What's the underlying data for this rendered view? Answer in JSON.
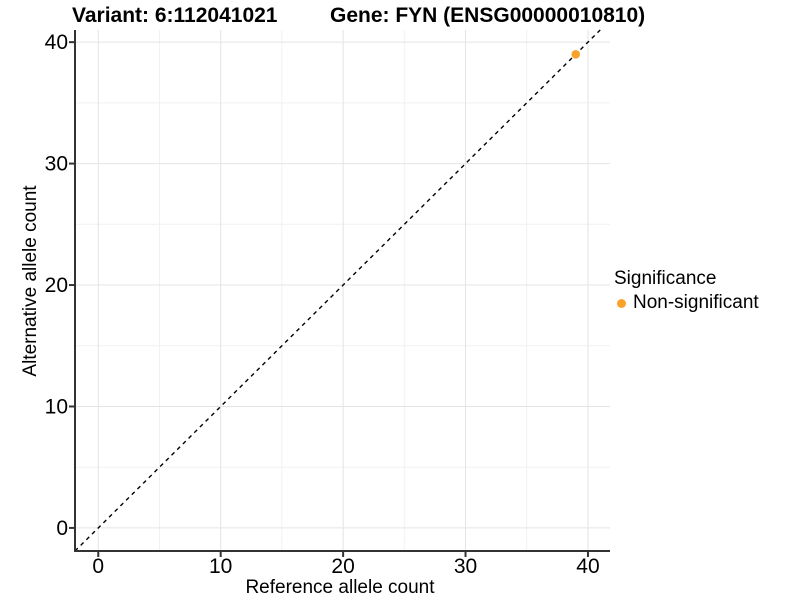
{
  "chart_data": {
    "type": "scatter",
    "titles": {
      "variant": "Variant: 6:112041021",
      "gene": "Gene: FYN (ENSG00000010810)"
    },
    "xlabel": "Reference allele count",
    "ylabel": "Alternative allele count",
    "xlim": [
      -1.9,
      41.8
    ],
    "ylim": [
      -1.9,
      41.0
    ],
    "x_ticks": [
      0,
      10,
      20,
      30,
      40
    ],
    "y_ticks": [
      0,
      10,
      20,
      30,
      40
    ],
    "x_minor_ticks": [
      5,
      15,
      25,
      35
    ],
    "y_minor_ticks": [
      5,
      15,
      25,
      35
    ],
    "grid": true,
    "identity_line": {
      "slope": 1,
      "intercept": 0,
      "style": "dashed",
      "color": "#000000"
    },
    "series": [
      {
        "name": "Non-significant",
        "color": "#F9A22B",
        "points": [
          {
            "x": 39,
            "y": 39
          }
        ]
      }
    ],
    "legend": {
      "title": "Significance",
      "position": "right",
      "items": [
        {
          "label": "Non-significant",
          "color": "#F9A22B",
          "marker": "circle"
        }
      ]
    },
    "colors": {
      "background": "#FFFFFF",
      "grid_major": "#E4E4E4",
      "grid_minor": "#F1F1F1",
      "axis_line": "#333333",
      "tick_mark": "#333333",
      "text": "#000000",
      "point": "#F9A22B"
    }
  }
}
